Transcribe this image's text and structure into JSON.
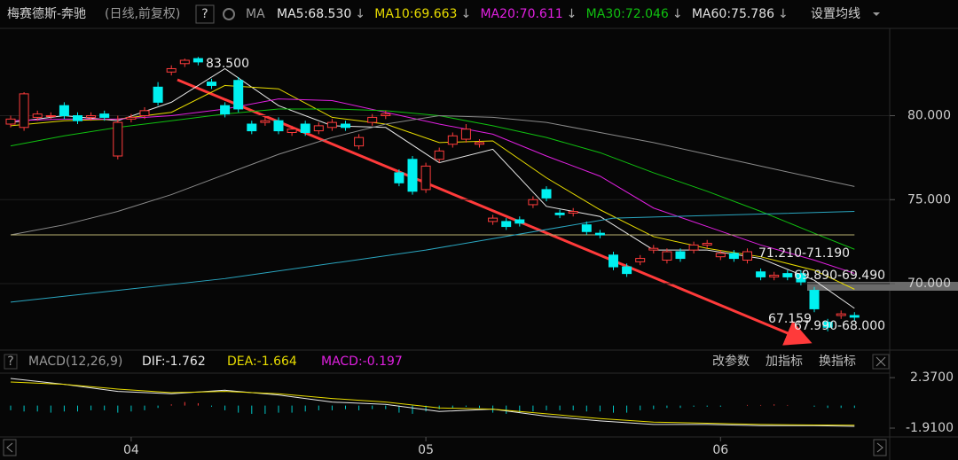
{
  "header": {
    "title": "梅赛德斯-奔驰",
    "subtitle": "(日线,前复权)",
    "help": "?",
    "ma_label": "MA",
    "settings": "设置均线"
  },
  "chart_data": [
    {
      "type": "candlestick",
      "up_color": "#ff3c3c",
      "down_color": "#00f0f0",
      "ylim": [
        66.2,
        85.2
      ],
      "yticks": [
        {
          "value": 80,
          "label": "80.000"
        },
        {
          "value": 75,
          "label": "75.000"
        },
        {
          "value": 70,
          "label": "70.000"
        }
      ],
      "xlabels": {
        "x": [
          9,
          31,
          53
        ],
        "labels": [
          "04",
          "05",
          "06"
        ]
      },
      "open": [
        79.5,
        79.3,
        79.9,
        80.0,
        80.6,
        80.0,
        79.9,
        80.1,
        77.6,
        79.8,
        80.0,
        81.7,
        82.6,
        83.1,
        83.4,
        82.0,
        80.6,
        82.1,
        79.5,
        79.6,
        79.7,
        79.0,
        79.5,
        79.1,
        79.3,
        79.5,
        78.2,
        79.6,
        80.0,
        76.6,
        77.4,
        75.6,
        77.4,
        78.3,
        78.6,
        78.3,
        73.7,
        73.7,
        73.8,
        74.7,
        75.6,
        74.2,
        74.2,
        73.5,
        73.0,
        71.7,
        71.0,
        71.3,
        72.0,
        71.4,
        71.9,
        72.0,
        72.3,
        71.6,
        71.8,
        71.4,
        70.7,
        70.4,
        70.6,
        70.6,
        69.6,
        67.7,
        68.1,
        68.1
      ],
      "close": [
        79.8,
        81.3,
        80.1,
        80.0,
        80.0,
        79.7,
        80.0,
        79.9,
        79.6,
        79.9,
        80.3,
        80.8,
        82.8,
        83.3,
        83.2,
        81.8,
        80.1,
        80.4,
        79.1,
        79.7,
        79.1,
        79.2,
        79.0,
        79.4,
        79.6,
        79.3,
        78.7,
        79.9,
        80.1,
        76.0,
        75.5,
        77.0,
        77.9,
        78.8,
        79.2,
        78.4,
        73.9,
        73.4,
        73.6,
        75.0,
        75.1,
        74.1,
        74.3,
        73.1,
        72.9,
        71.0,
        70.6,
        71.5,
        72.1,
        71.9,
        71.5,
        72.3,
        72.4,
        71.8,
        71.5,
        71.9,
        70.4,
        70.5,
        70.4,
        70.1,
        68.5,
        67.4,
        68.2,
        68.0
      ],
      "high": [
        80.0,
        81.4,
        80.3,
        80.2,
        80.8,
        80.2,
        80.2,
        80.3,
        80.0,
        80.1,
        80.5,
        82.0,
        83.0,
        83.4,
        83.5,
        82.2,
        80.8,
        82.3,
        79.7,
        79.9,
        79.9,
        79.4,
        79.7,
        79.6,
        79.8,
        79.7,
        78.9,
        80.1,
        80.3,
        76.8,
        77.6,
        77.2,
        78.1,
        79.0,
        79.5,
        78.6,
        74.1,
        73.9,
        74.0,
        75.2,
        75.8,
        74.4,
        74.5,
        73.7,
        73.2,
        71.9,
        71.2,
        71.7,
        72.3,
        72.1,
        72.1,
        72.5,
        72.6,
        72.0,
        72.0,
        72.1,
        70.9,
        70.7,
        70.8,
        70.8,
        69.8,
        67.9,
        68.4,
        68.3
      ],
      "low": [
        79.3,
        79.1,
        79.7,
        79.8,
        79.8,
        79.5,
        79.7,
        79.7,
        77.4,
        79.6,
        79.8,
        80.6,
        82.4,
        82.9,
        83.0,
        81.6,
        79.9,
        80.2,
        78.9,
        79.4,
        78.9,
        78.8,
        78.8,
        78.9,
        79.1,
        79.1,
        78.0,
        79.4,
        79.8,
        75.8,
        75.3,
        75.4,
        77.2,
        78.1,
        78.4,
        78.1,
        73.5,
        73.2,
        73.4,
        74.5,
        74.9,
        73.9,
        74.0,
        72.9,
        72.7,
        70.8,
        70.4,
        71.1,
        71.8,
        71.2,
        71.3,
        71.8,
        72.1,
        71.4,
        71.3,
        71.2,
        70.2,
        70.2,
        70.2,
        69.9,
        68.3,
        67.159,
        67.9,
        67.8
      ],
      "series": [
        {
          "name": "MA5",
          "legend_label": "MA5:68.530",
          "trend": "↓",
          "color": "#e8e8e8",
          "x": [
            0,
            4,
            8,
            12,
            16,
            20,
            24,
            28,
            32,
            36,
            40,
            44,
            48,
            52,
            56,
            60,
            63
          ],
          "values": [
            79.6,
            80.0,
            79.7,
            80.8,
            82.8,
            80.6,
            79.4,
            79.3,
            77.2,
            78.0,
            74.6,
            74.0,
            72.0,
            72.0,
            71.5,
            70.2,
            68.53
          ]
        },
        {
          "name": "MA10",
          "legend_label": "MA10:69.663",
          "trend": "↓",
          "color": "#e8dc00",
          "x": [
            0,
            4,
            8,
            12,
            16,
            20,
            24,
            28,
            32,
            36,
            40,
            44,
            48,
            52,
            56,
            60,
            63
          ],
          "values": [
            79.4,
            79.7,
            79.8,
            80.2,
            81.8,
            81.6,
            79.9,
            79.5,
            78.4,
            78.5,
            76.3,
            74.4,
            72.8,
            72.1,
            71.6,
            70.8,
            69.663
          ]
        },
        {
          "name": "MA20",
          "legend_label": "MA20:70.611",
          "trend": "↓",
          "color": "#e020e0",
          "x": [
            0,
            4,
            8,
            12,
            16,
            20,
            24,
            28,
            32,
            36,
            40,
            44,
            48,
            52,
            56,
            60,
            63
          ],
          "values": [
            79.7,
            79.8,
            79.8,
            80.0,
            80.4,
            81.0,
            80.9,
            80.2,
            79.5,
            78.9,
            77.6,
            76.4,
            74.5,
            73.4,
            72.3,
            71.4,
            70.611
          ]
        },
        {
          "name": "MA30",
          "legend_label": "MA30:72.046",
          "trend": "↓",
          "color": "#10c010",
          "x": [
            0,
            4,
            8,
            12,
            16,
            20,
            24,
            28,
            32,
            36,
            40,
            44,
            48,
            52,
            56,
            60,
            63
          ],
          "values": [
            78.2,
            78.8,
            79.3,
            79.7,
            80.1,
            80.4,
            80.4,
            80.3,
            80.0,
            79.4,
            78.7,
            77.8,
            76.6,
            75.5,
            74.3,
            73.0,
            72.046
          ]
        },
        {
          "name": "MA60",
          "legend_label": "MA60:75.786",
          "trend": "↓",
          "color": "#8a8a8a",
          "x": [
            0,
            4,
            8,
            12,
            16,
            20,
            24,
            28,
            32,
            36,
            40,
            44,
            48,
            52,
            56,
            60,
            63
          ],
          "values": [
            72.9,
            73.5,
            74.3,
            75.3,
            76.5,
            77.7,
            78.7,
            79.5,
            80.0,
            79.9,
            79.6,
            79.0,
            78.4,
            77.7,
            77.0,
            76.3,
            75.786
          ]
        },
        {
          "color": "#b8b070",
          "x": [
            0,
            63
          ],
          "values": [
            72.9,
            72.9
          ]
        },
        {
          "color": "#2aa6c0",
          "x": [
            0,
            16,
            31,
            45,
            63
          ],
          "values": [
            68.9,
            70.3,
            72.0,
            73.9,
            74.3
          ]
        }
      ],
      "annotations": [
        "83.500",
        "71.210-71.190",
        "69.890-69.490",
        "67.159",
        "67.990-68.000"
      ]
    },
    {
      "type": "macd",
      "title": "MACD(12,26,9)",
      "ylim": [
        -2.66,
        2.75
      ],
      "yticks": [
        {
          "value": 2.37,
          "label": "2.3700"
        },
        {
          "value": -1.91,
          "label": "-1.9100"
        }
      ],
      "buttons": [
        "改参数",
        "加指标",
        "换指标"
      ],
      "lines": [
        {
          "legend_label": "DIF:-1.762",
          "color": "#e8e8e8",
          "x": [
            0,
            4,
            8,
            12,
            16,
            20,
            24,
            28,
            32,
            36,
            40,
            44,
            48,
            52,
            56,
            60,
            63
          ],
          "values": [
            2.3,
            1.8,
            1.2,
            1.0,
            1.3,
            0.9,
            0.3,
            0.1,
            -0.5,
            -0.3,
            -0.9,
            -1.3,
            -1.6,
            -1.6,
            -1.7,
            -1.7,
            -1.762
          ]
        },
        {
          "legend_label": "DEA:-1.664",
          "color": "#e8dc00",
          "x": [
            0,
            4,
            8,
            12,
            16,
            20,
            24,
            28,
            32,
            36,
            40,
            44,
            48,
            52,
            56,
            60,
            63
          ],
          "values": [
            2.0,
            1.8,
            1.4,
            1.1,
            1.2,
            1.0,
            0.6,
            0.3,
            -0.2,
            -0.3,
            -0.7,
            -1.1,
            -1.4,
            -1.5,
            -1.6,
            -1.65,
            -1.664
          ]
        }
      ],
      "histogram": {
        "legend_label": "MACD:-0.197",
        "color": "#e020e0",
        "up_color": "#ff3c3c",
        "down_color": "#00c8c8",
        "values": [
          -0.4,
          -0.5,
          -0.5,
          -0.6,
          -0.5,
          -0.5,
          -0.4,
          -0.4,
          -0.6,
          -0.5,
          -0.4,
          -0.2,
          0.1,
          0.3,
          0.2,
          -0.1,
          -0.4,
          -0.6,
          -0.7,
          -0.7,
          -0.6,
          -0.6,
          -0.5,
          -0.4,
          -0.4,
          -0.3,
          -0.4,
          -0.3,
          -0.3,
          -0.6,
          -0.7,
          -0.5,
          -0.3,
          -0.2,
          -0.1,
          -0.2,
          -0.6,
          -0.7,
          -0.6,
          -0.5,
          -0.4,
          -0.4,
          -0.4,
          -0.5,
          -0.5,
          -0.6,
          -0.6,
          -0.4,
          -0.3,
          -0.2,
          -0.2,
          -0.1,
          -0.1,
          -0.1,
          0.0,
          0.05,
          0.05,
          0.1,
          0.05,
          0.0,
          -0.1,
          -0.2,
          -0.2,
          -0.197
        ]
      }
    }
  ]
}
